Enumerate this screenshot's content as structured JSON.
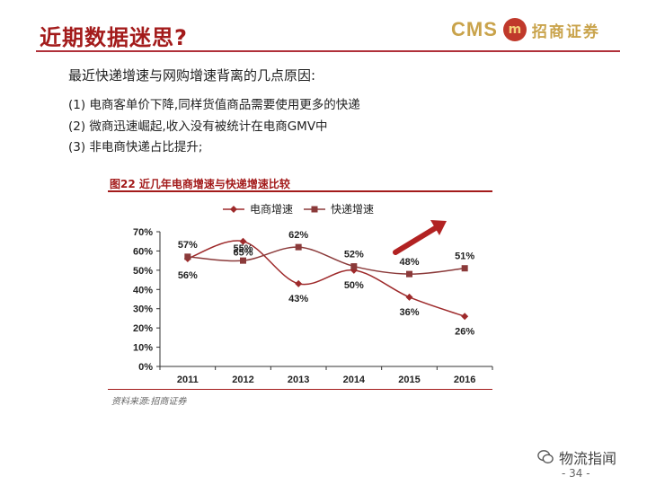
{
  "header": {
    "title": "近期数据迷思?",
    "logo_text": "CMS",
    "logo_mark": "m",
    "logo_cn": "招商证券"
  },
  "intro": "最近快递增速与网购增速背离的几点原因:",
  "reasons": [
    "(1) 电商客单价下降,同样货值商品需要使用更多的快递",
    "(2) 微商迅速崛起,收入没有被统计在电商GMV中",
    "(3) 非电商快递占比提升;"
  ],
  "figure_title": "图22  近几年电商增速与快递增速比较",
  "source": "资料来源:招商证券",
  "watermark": "物流指闻",
  "page_number": "- 34 -",
  "colors": {
    "accent": "#a31b1b",
    "series1": "#9e2a2b",
    "series2": "#8b3a3a",
    "arrow": "#b22222"
  },
  "chart_data": {
    "type": "line",
    "categories": [
      "2011",
      "2012",
      "2013",
      "2014",
      "2015",
      "2016"
    ],
    "series": [
      {
        "name": "电商增速",
        "values": [
          56,
          65,
          43,
          50,
          36,
          26
        ],
        "labels": [
          "56%",
          "65%",
          "43%",
          "50%",
          "36%",
          "26%"
        ],
        "marker": "diamond"
      },
      {
        "name": "快递增速",
        "values": [
          57,
          55,
          62,
          52,
          48,
          51
        ],
        "labels": [
          "57%",
          "55%",
          "62%",
          "52%",
          "48%",
          "51%"
        ],
        "marker": "square"
      }
    ],
    "yticks": [
      "0%",
      "10%",
      "20%",
      "30%",
      "40%",
      "50%",
      "60%",
      "70%"
    ],
    "ylim": [
      0,
      70
    ],
    "legend": "top",
    "grid": false,
    "annotation": "upward-trend-arrow"
  }
}
